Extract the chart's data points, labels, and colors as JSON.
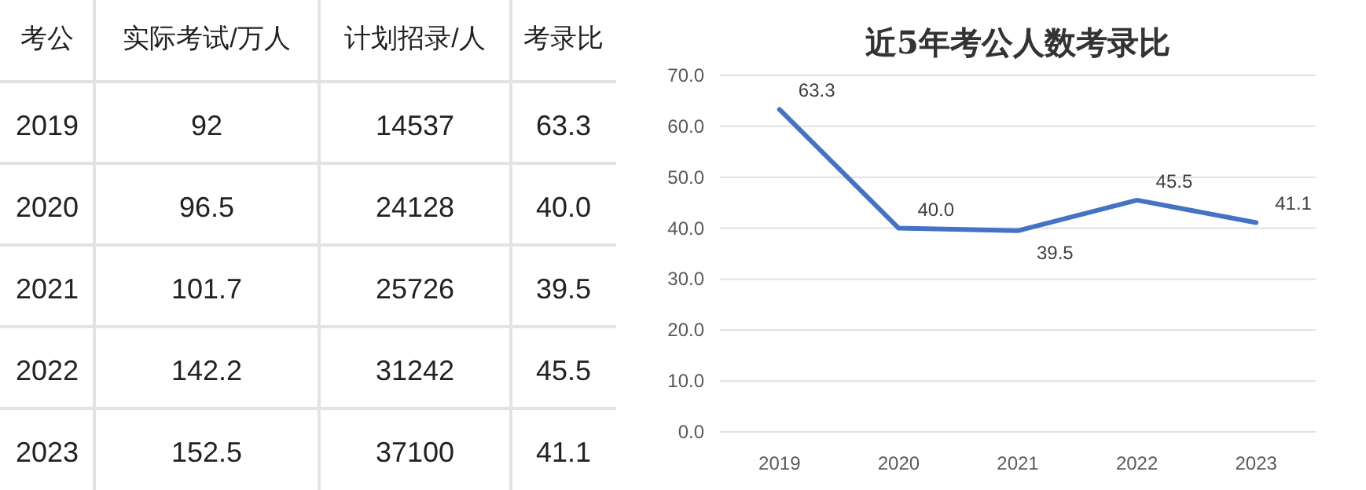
{
  "chart_data": [
    {
      "type": "heatmap",
      "ylabel": "考公",
      "categories": [
        "实际考试/万人",
        "计划招录/人",
        "考录比"
      ],
      "y_categories": [
        "2019",
        "2020",
        "2021",
        "2022",
        "2023"
      ],
      "data_labels": true,
      "cells": [
        [
          92,
          14537,
          63.3
        ],
        [
          96.5,
          24128,
          40.0
        ],
        [
          101.7,
          25726,
          39.5
        ],
        [
          142.2,
          31242,
          45.5
        ],
        [
          152.5,
          37100,
          41.1
        ]
      ],
      "cell_labels": [
        [
          "92",
          "14537",
          "63.3"
        ],
        [
          "96.5",
          "24128",
          "40.0"
        ],
        [
          "101.7",
          "25726",
          "39.5"
        ],
        [
          "142.2",
          "31242",
          "45.5"
        ],
        [
          "152.5",
          "37100",
          "41.1"
        ]
      ]
    },
    {
      "type": "line",
      "title": "近5年考公人数考录比",
      "categories": [
        "2019",
        "2020",
        "2021",
        "2022",
        "2023"
      ],
      "color": "#4472c4",
      "values": [
        63.3,
        40.0,
        39.5,
        45.5,
        41.1
      ],
      "value_labels": [
        "63.3",
        "40.0",
        "39.5",
        "45.5",
        "41.1"
      ],
      "ylim": [
        0,
        70
      ],
      "yticks": [
        {
          "value": 0,
          "label": "0.0"
        },
        {
          "value": 10,
          "label": "10.0"
        },
        {
          "value": 20,
          "label": "20.0"
        },
        {
          "value": 30,
          "label": "30.0"
        },
        {
          "value": 40,
          "label": "40.0"
        },
        {
          "value": 50,
          "label": "50.0"
        },
        {
          "value": 60,
          "label": "60.0"
        },
        {
          "value": 70,
          "label": "70.0"
        }
      ],
      "grid": "y",
      "legend": false,
      "marker": "none",
      "line_style": "solid"
    }
  ]
}
